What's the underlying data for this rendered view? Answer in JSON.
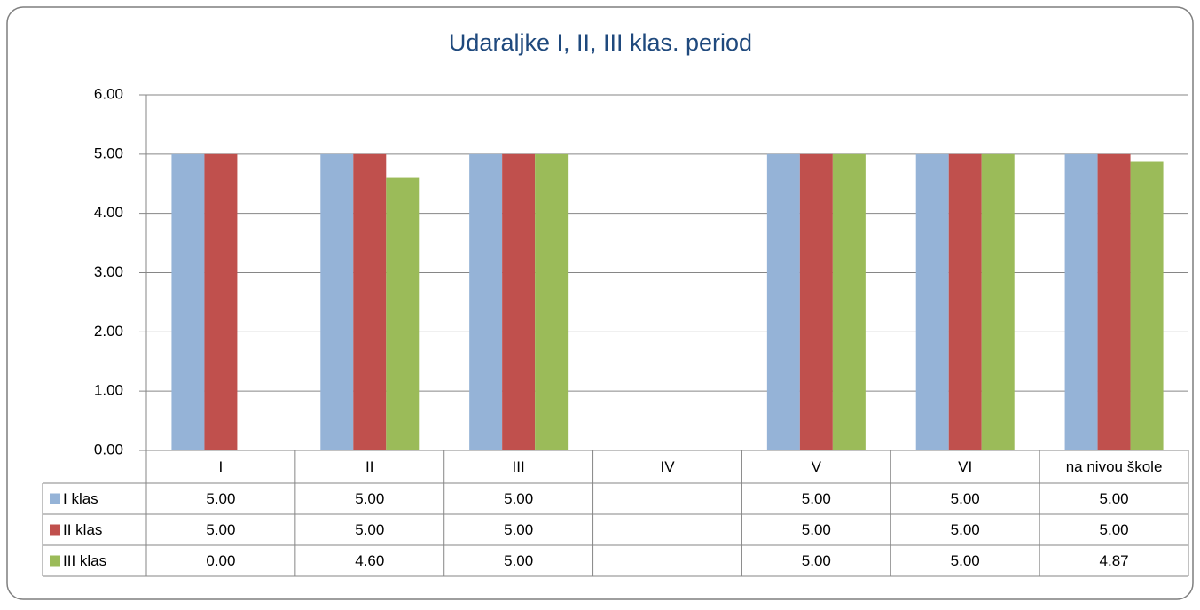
{
  "chart_data": {
    "type": "bar",
    "title": "Udaraljke I, II, III  klas. period",
    "categories": [
      "I",
      "II",
      "III",
      "IV",
      "V",
      "VI",
      "na nivou škole"
    ],
    "series": [
      {
        "name": "I klas",
        "color": "#95b3d7",
        "values": [
          5,
          5,
          5,
          null,
          5,
          5,
          5
        ],
        "value_labels": [
          "5.00",
          "5.00",
          "5.00",
          null,
          "5.00",
          "5.00",
          "5.00"
        ]
      },
      {
        "name": "II klas",
        "color": "#c0504d",
        "values": [
          5,
          5,
          5,
          null,
          5,
          5,
          5
        ],
        "value_labels": [
          "5.00",
          "5.00",
          "5.00",
          null,
          "5.00",
          "5.00",
          "5.00"
        ]
      },
      {
        "name": "III klas",
        "color": "#9bbb59",
        "values": [
          0,
          4.6,
          5,
          null,
          5,
          5,
          4.87
        ],
        "value_labels": [
          "0.00",
          "4.60",
          "5.00",
          null,
          "5.00",
          "5.00",
          "4.87"
        ]
      }
    ],
    "ylim": [
      0,
      6
    ],
    "yticks": [
      {
        "value": 0,
        "label": "0.00"
      },
      {
        "value": 1,
        "label": "1.00"
      },
      {
        "value": 2,
        "label": "2.00"
      },
      {
        "value": 3,
        "label": "3.00"
      },
      {
        "value": 4,
        "label": "4.00"
      },
      {
        "value": 5,
        "label": "5.00"
      },
      {
        "value": 6,
        "label": "6.00"
      }
    ],
    "grid": true
  }
}
